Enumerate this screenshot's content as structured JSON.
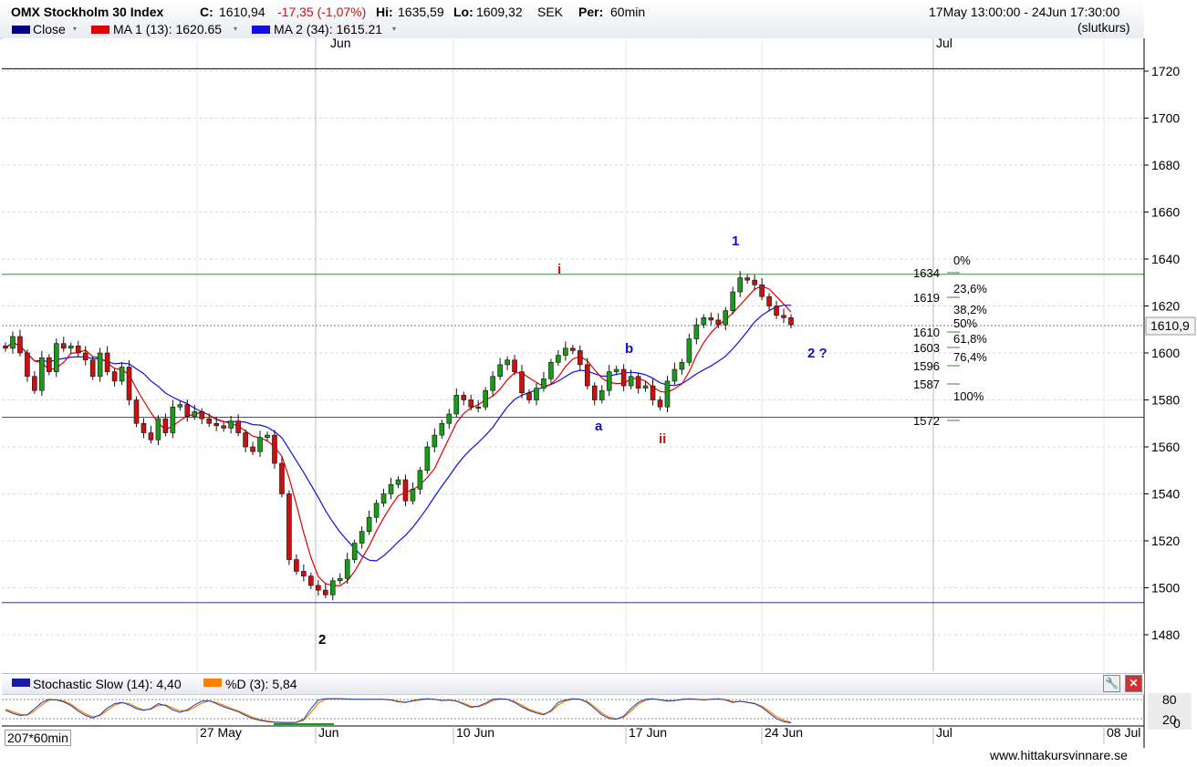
{
  "header": {
    "instrument": "OMX Stockholm 30 Index",
    "close_label": "C:",
    "close_value": "1610,94",
    "change": "-17,35 (-1,07%)",
    "hi_label": "Hi:",
    "hi_value": "1635,59",
    "lo_label": "Lo:",
    "lo_value": "1609,32",
    "currency": "SEK",
    "period_label": "Per:",
    "period_value": "60min",
    "date_range": "17May 13:00:00 - 24Jun 17:30:00",
    "mode": "(slutkurs)"
  },
  "legend": {
    "close": "Close",
    "ma1": "MA 1 (13): 1620.65",
    "ma2": "MA 2 (34): 1615.21",
    "stoch": "Stochastic Slow (14): 4,40",
    "pd": "%D (3): 5,84"
  },
  "colors": {
    "close": "#00008b",
    "ma1": "#e00000",
    "ma2": "#1010e0",
    "up": "#1a9a1a",
    "down": "#cc1010",
    "stoch_k": "#1f3fb0",
    "stoch_d": "#ff7f00"
  },
  "bottom": {
    "bars_info": "207*60min",
    "watermark": "www.hittakursvinnare.se"
  },
  "chart_data": {
    "type": "candlestick",
    "ylim": [
      1466,
      1725
    ],
    "y_ticks": [
      "1720",
      "1700",
      "1680",
      "1660",
      "1640",
      "1620",
      "1600",
      "1580",
      "1560",
      "1540",
      "1520",
      "1500",
      "1480"
    ],
    "top_months": [
      "Jun",
      "Jul"
    ],
    "x_ticks": [
      "27 May",
      "Jun",
      "10 Jun",
      "17 Jun",
      "24 Jun",
      "Jul",
      "08 Jul"
    ],
    "last_price_tag": "1610,9",
    "close_path": [
      1602,
      1607,
      1600,
      1590,
      1584,
      1598,
      1592,
      1604,
      1602,
      1603,
      1600,
      1597,
      1590,
      1600,
      1592,
      1588,
      1594,
      1580,
      1570,
      1566,
      1563,
      1572,
      1566,
      1577,
      1578,
      1573,
      1575,
      1572,
      1570,
      1569,
      1568,
      1571,
      1566,
      1560,
      1558,
      1564,
      1565,
      1553,
      1540,
      1512,
      1507,
      1505,
      1501,
      1499,
      1497,
      1503,
      1504,
      1512,
      1519,
      1524,
      1530,
      1536,
      1540,
      1544,
      1546,
      1537,
      1542,
      1550,
      1560,
      1565,
      1570,
      1574,
      1582,
      1580,
      1577,
      1577,
      1584,
      1590,
      1595,
      1597,
      1592,
      1583,
      1580,
      1585,
      1589,
      1596,
      1599,
      1602,
      1601,
      1595,
      1586,
      1580,
      1584,
      1592,
      1593,
      1586,
      1590,
      1585,
      1586,
      1580,
      1577,
      1588,
      1593,
      1596,
      1606,
      1612,
      1615,
      1614,
      1612,
      1618,
      1626,
      1632,
      1631,
      1629,
      1624,
      1620,
      1616,
      1615,
      1612
    ],
    "h_lines": [
      {
        "value": 1721,
        "color": "#000000"
      },
      {
        "value": 1633.5,
        "color": "#3a8a3a"
      },
      {
        "value": 1572.6,
        "color": "#cc2020"
      },
      {
        "value": 1493.7,
        "color": "#4a2a8a"
      }
    ],
    "fib_levels": [
      {
        "price": "1634",
        "pct": "0%"
      },
      {
        "price": "1619",
        "pct": "23,6%"
      },
      {
        "price": "",
        "pct": "38,2%"
      },
      {
        "price": "1610",
        "pct": "50%"
      },
      {
        "price": "1603",
        "pct": "61,8%"
      },
      {
        "price": "1596",
        "pct": "76,4%"
      },
      {
        "price": "1587",
        "pct": ""
      },
      {
        "price": "",
        "pct": "100%"
      },
      {
        "price": "1572",
        "pct": ""
      }
    ],
    "wave_labels": [
      {
        "text": "i",
        "color": "#cc1010"
      },
      {
        "text": "1",
        "color": "#1010cc"
      },
      {
        "text": "b",
        "color": "#1010cc"
      },
      {
        "text": "2 ?",
        "color": "#1010cc"
      },
      {
        "text": "a",
        "color": "#1010cc"
      },
      {
        "text": "ii",
        "color": "#cc1010"
      },
      {
        "text": "2",
        "color": "#000000"
      }
    ],
    "stoch_ticks": [
      "80",
      "20",
      "0"
    ],
    "stoch_k": [
      45,
      35,
      28,
      30,
      50,
      70,
      80,
      78,
      72,
      60,
      42,
      28,
      20,
      30,
      52,
      66,
      70,
      62,
      50,
      44,
      50,
      66,
      60,
      46,
      38,
      46,
      62,
      74,
      76,
      66,
      56,
      48,
      40,
      28,
      18,
      12,
      8,
      6,
      5,
      5,
      6,
      16,
      50,
      78,
      82,
      82,
      82,
      81,
      80,
      80,
      80,
      80,
      80,
      78,
      72,
      70,
      76,
      80,
      82,
      80,
      76,
      78,
      74,
      64,
      54,
      58,
      68,
      80,
      82,
      80,
      70,
      56,
      44,
      36,
      30,
      44,
      70,
      78,
      82,
      80,
      70,
      50,
      30,
      18,
      16,
      26,
      50,
      70,
      80,
      82,
      78,
      74,
      76,
      80,
      82,
      80,
      78,
      80,
      82,
      78,
      70,
      74,
      70,
      66,
      54,
      36,
      18,
      8,
      4
    ],
    "stoch_d": [
      48,
      40,
      32,
      29,
      43,
      63,
      77,
      79,
      75,
      64,
      48,
      33,
      24,
      27,
      45,
      61,
      69,
      66,
      55,
      46,
      48,
      60,
      62,
      52,
      43,
      43,
      55,
      68,
      75,
      70,
      61,
      51,
      43,
      32,
      22,
      15,
      10,
      7,
      6,
      5,
      6,
      12,
      38,
      68,
      80,
      82,
      82,
      81,
      80,
      80,
      80,
      80,
      80,
      78,
      74,
      71,
      74,
      78,
      81,
      80,
      77,
      77,
      75,
      68,
      58,
      56,
      64,
      76,
      81,
      80,
      73,
      61,
      48,
      39,
      33,
      40,
      62,
      75,
      80,
      80,
      73,
      56,
      36,
      22,
      17,
      22,
      42,
      64,
      77,
      81,
      79,
      76,
      76,
      79,
      81,
      80,
      79,
      80,
      81,
      79,
      73,
      73,
      71,
      67,
      58,
      42,
      24,
      12,
      6
    ]
  }
}
